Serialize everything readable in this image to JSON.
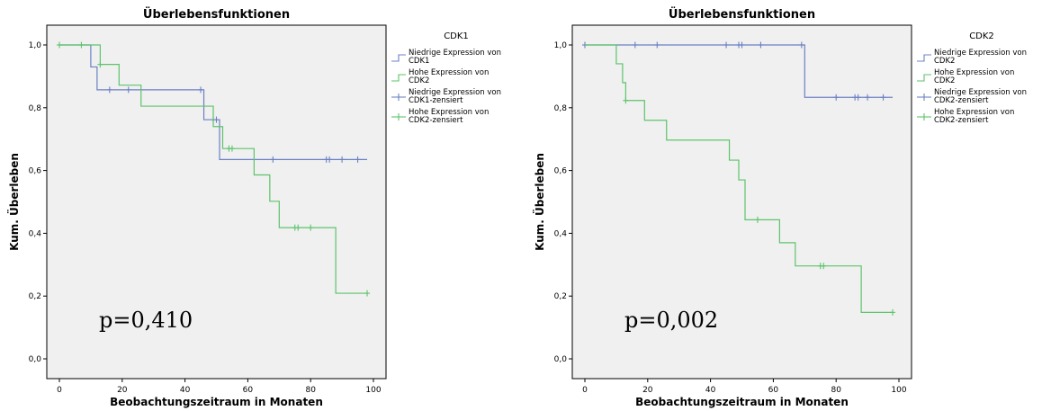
{
  "chart_data": [
    {
      "type": "line",
      "title": "Überlebensfunktionen",
      "xlabel": "Beobachtungszeitraum in Monaten",
      "ylabel": "Kum. Überleben",
      "xlim": [
        0,
        100
      ],
      "ylim": [
        0,
        1
      ],
      "xticks": [
        "0",
        "20",
        "40",
        "60",
        "80",
        "100"
      ],
      "yticks": [
        "0,0",
        "0,2",
        "0,4",
        "0,6",
        "0,8",
        "1,0"
      ],
      "legend_title": "CDK1",
      "legend_placement": "right",
      "legend": [
        {
          "kind": "line",
          "color": "#6b80c4",
          "text": [
            "Niedrige Expression von",
            "CDK1"
          ]
        },
        {
          "kind": "line",
          "color": "#5dc46a",
          "text": [
            "Hohe Expression von",
            "CDK2"
          ]
        },
        {
          "kind": "cross",
          "color": "#6b80c4",
          "text": [
            "Niedrige Expression von",
            "CDK1-zensiert"
          ]
        },
        {
          "kind": "cross",
          "color": "#5dc46a",
          "text": [
            "Hohe Expression von",
            "CDK2-zensiert"
          ]
        }
      ],
      "annotation": "p=0,410",
      "series": [
        {
          "name": "Niedrige Expression von CDK1",
          "color": "#6b80c4",
          "steps": [
            [
              0,
              1.0
            ],
            [
              10,
              0.93
            ],
            [
              12,
              0.857
            ],
            [
              46,
              0.762
            ],
            [
              51,
              0.635
            ],
            [
              98,
              0.635
            ]
          ],
          "censored": [
            [
              16,
              0.857
            ],
            [
              22,
              0.857
            ],
            [
              45,
              0.857
            ],
            [
              49,
              0.762
            ],
            [
              50,
              0.762
            ],
            [
              68,
              0.635
            ],
            [
              85,
              0.635
            ],
            [
              86,
              0.635
            ],
            [
              90,
              0.635
            ],
            [
              95,
              0.635
            ]
          ]
        },
        {
          "name": "Hohe Expression von CDK2",
          "color": "#5dc46a",
          "steps": [
            [
              0,
              1.0
            ],
            [
              13,
              0.938
            ],
            [
              19,
              0.872
            ],
            [
              26,
              0.805
            ],
            [
              49,
              0.74
            ],
            [
              52,
              0.67
            ],
            [
              62,
              0.586
            ],
            [
              67,
              0.502
            ],
            [
              70,
              0.418
            ],
            [
              88,
              0.209
            ],
            [
              98,
              0.209
            ]
          ],
          "censored": [
            [
              0,
              1.0
            ],
            [
              7,
              1.0
            ],
            [
              13,
              0.938
            ],
            [
              54,
              0.67
            ],
            [
              55,
              0.67
            ],
            [
              75,
              0.418
            ],
            [
              76,
              0.418
            ],
            [
              80,
              0.418
            ],
            [
              98,
              0.209
            ]
          ]
        }
      ]
    },
    {
      "type": "line",
      "title": "Überlebensfunktionen",
      "xlabel": "Beobachtungszeitraum in Monaten",
      "ylabel": "Kum. Überleben",
      "xlim": [
        0,
        100
      ],
      "ylim": [
        0,
        1
      ],
      "xticks": [
        "0",
        "20",
        "40",
        "60",
        "80",
        "100"
      ],
      "yticks": [
        "0,0",
        "0,2",
        "0,4",
        "0,6",
        "0,8",
        "1,0"
      ],
      "legend_title": "CDK2",
      "legend_placement": "right",
      "legend": [
        {
          "kind": "line",
          "color": "#6b80c4",
          "text": [
            "Niedrige Expression von",
            "CDK2"
          ]
        },
        {
          "kind": "line",
          "color": "#5dc46a",
          "text": [
            "Hohe Expression von",
            "CDK2"
          ]
        },
        {
          "kind": "cross",
          "color": "#6b80c4",
          "text": [
            "Niedrige Expression von",
            "CDK2-zensiert"
          ]
        },
        {
          "kind": "cross",
          "color": "#5dc46a",
          "text": [
            "Hohe Expression von",
            "CDK2-zensiert"
          ]
        }
      ],
      "annotation": "p=0,002",
      "series": [
        {
          "name": "Niedrige Expression von CDK2",
          "color": "#6b80c4",
          "steps": [
            [
              0,
              1.0
            ],
            [
              70,
              0.833
            ],
            [
              98,
              0.833
            ]
          ],
          "censored": [
            [
              0,
              1.0
            ],
            [
              16,
              1.0
            ],
            [
              23,
              1.0
            ],
            [
              45,
              1.0
            ],
            [
              49,
              1.0
            ],
            [
              50,
              1.0
            ],
            [
              56,
              1.0
            ],
            [
              69,
              1.0
            ],
            [
              80,
              0.833
            ],
            [
              86,
              0.833
            ],
            [
              87,
              0.833
            ],
            [
              90,
              0.833
            ],
            [
              95,
              0.833
            ]
          ]
        },
        {
          "name": "Hohe Expression von CDK2",
          "color": "#5dc46a",
          "steps": [
            [
              0,
              1.0
            ],
            [
              10,
              0.94
            ],
            [
              12,
              0.88
            ],
            [
              13,
              0.823
            ],
            [
              19,
              0.76
            ],
            [
              26,
              0.697
            ],
            [
              46,
              0.633
            ],
            [
              49,
              0.57
            ],
            [
              51,
              0.443
            ],
            [
              62,
              0.37
            ],
            [
              67,
              0.296
            ],
            [
              88,
              0.148
            ],
            [
              98,
              0.148
            ]
          ],
          "censored": [
            [
              13,
              0.823
            ],
            [
              55,
              0.443
            ],
            [
              75,
              0.296
            ],
            [
              76,
              0.296
            ],
            [
              98,
              0.148
            ]
          ]
        }
      ]
    }
  ]
}
